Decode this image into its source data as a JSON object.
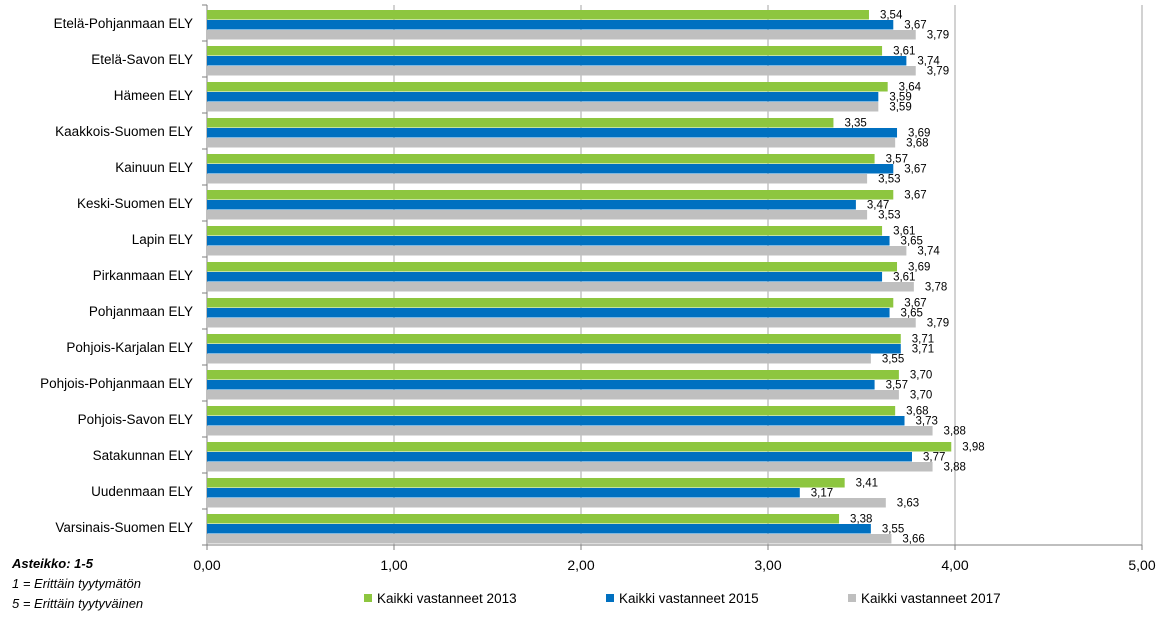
{
  "chart_data": {
    "type": "bar",
    "orientation": "horizontal",
    "categories": [
      "Etelä-Pohjanmaan ELY",
      "Etelä-Savon ELY",
      "Hämeen ELY",
      "Kaakkois-Suomen ELY",
      "Kainuun ELY",
      "Keski-Suomen ELY",
      "Lapin ELY",
      "Pirkanmaan ELY",
      "Pohjanmaan ELY",
      "Pohjois-Karjalan ELY",
      "Pohjois-Pohjanmaan ELY",
      "Pohjois-Savon ELY",
      "Satakunnan ELY",
      "Uudenmaan ELY",
      "Varsinais-Suomen ELY"
    ],
    "series": [
      {
        "name": "Kaikki vastanneet 2013",
        "color": "#8DC63F",
        "values": [
          3.54,
          3.61,
          3.64,
          3.35,
          3.57,
          3.67,
          3.61,
          3.69,
          3.67,
          3.71,
          3.7,
          3.68,
          3.98,
          3.41,
          3.38
        ],
        "labels": [
          "3,54",
          "3,61",
          "3,64",
          "3,35",
          "3,57",
          "3,67",
          "3,61",
          "3,69",
          "3,67",
          "3,71",
          "3,70",
          "3,68",
          "3,98",
          "3,41",
          "3,38"
        ]
      },
      {
        "name": "Kaikki vastanneet 2015",
        "color": "#0070C0",
        "values": [
          3.67,
          3.74,
          3.59,
          3.69,
          3.67,
          3.47,
          3.65,
          3.61,
          3.65,
          3.71,
          3.57,
          3.73,
          3.77,
          3.17,
          3.55
        ],
        "labels": [
          "3,67",
          "3,74",
          "3,59",
          "3,69",
          "3,67",
          "3,47",
          "3,65",
          "3,61",
          "3,65",
          "3,71",
          "3,57",
          "3,73",
          "3,77",
          "3,17",
          "3,55"
        ]
      },
      {
        "name": "Kaikki vastanneet 2017",
        "color": "#BFBFBF",
        "values": [
          3.79,
          3.79,
          3.59,
          3.68,
          3.53,
          3.53,
          3.74,
          3.78,
          3.79,
          3.55,
          3.7,
          3.88,
          3.88,
          3.63,
          3.66
        ],
        "labels": [
          "3,79",
          "3,79",
          "3,59",
          "3,68",
          "3,53",
          "3,53",
          "3,74",
          "3,78",
          "3,79",
          "3,55",
          "3,70",
          "3,88",
          "3,88",
          "3,63",
          "3,66"
        ]
      }
    ],
    "xlim": [
      0,
      5
    ],
    "xticks": [
      0,
      1,
      2,
      3,
      4,
      5
    ],
    "xtick_labels": [
      "0,00",
      "1,00",
      "2,00",
      "3,00",
      "4,00",
      "5,00"
    ],
    "gridlines": "vertical",
    "legend_position": "bottom",
    "title": "",
    "xlabel": "",
    "ylabel": ""
  },
  "scale_note": {
    "title": "Asteikko: 1-5",
    "line1": "1 = Erittäin tyytymätön",
    "line2": "5 = Erittäin tyytyväinen"
  },
  "colors": {
    "grid": "#A6A6A6",
    "axis": "#7F7F7F",
    "text": "#000000"
  }
}
